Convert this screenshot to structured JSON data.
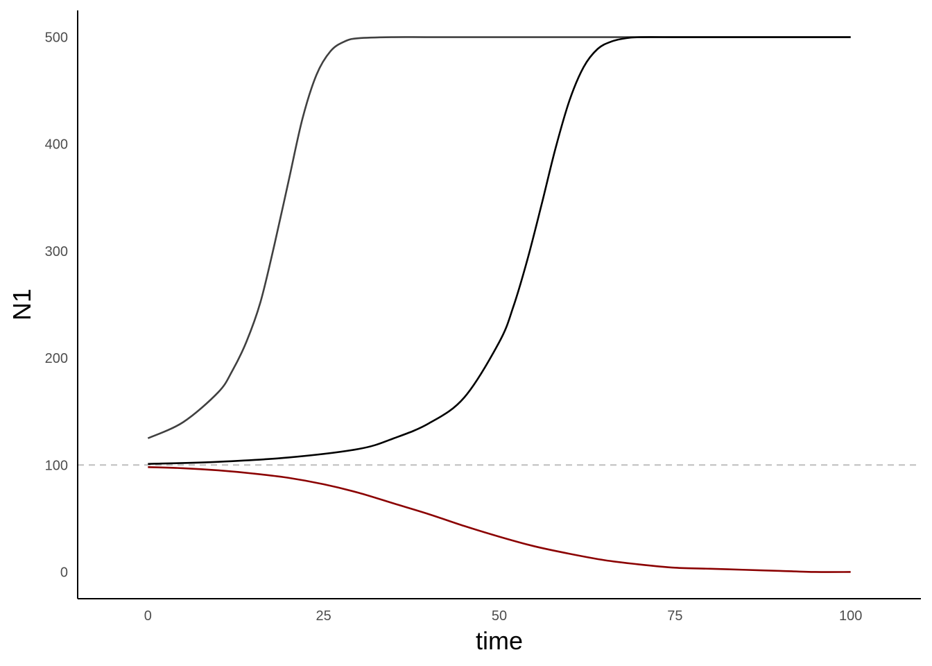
{
  "chart_data": {
    "type": "line",
    "title": "",
    "xlabel": "time",
    "ylabel": "N1",
    "xlim": [
      -10,
      110
    ],
    "ylim": [
      -25,
      525
    ],
    "x_ticks": [
      "0",
      "25",
      "50",
      "75",
      "100"
    ],
    "y_ticks": [
      "0",
      "100",
      "200",
      "300",
      "400",
      "500"
    ],
    "grid": false,
    "legend": "none",
    "reference_line": {
      "y": 100,
      "style": "dashed",
      "color": "#bebebe"
    },
    "series": [
      {
        "color": "#404040",
        "x": [
          0,
          5,
          10,
          12,
          14,
          16,
          18,
          20,
          22,
          24,
          26,
          28,
          30,
          35,
          40,
          50,
          60,
          70,
          80,
          90,
          100
        ],
        "y": [
          125,
          140,
          168,
          188,
          215,
          252,
          306,
          365,
          424,
          465,
          487,
          496,
          499,
          500,
          500,
          500,
          500,
          500,
          500,
          500,
          500
        ]
      },
      {
        "color": "#000000",
        "x": [
          0,
          10,
          20,
          30,
          35,
          40,
          45,
          50,
          52,
          54,
          56,
          58,
          60,
          62,
          64,
          66,
          68,
          70,
          75,
          80,
          90,
          100
        ],
        "y": [
          101,
          103,
          107,
          115,
          125,
          139,
          163,
          215,
          248,
          292,
          343,
          396,
          441,
          472,
          489,
          496,
          499,
          500,
          500,
          500,
          500,
          500
        ]
      },
      {
        "color": "#8b0000",
        "x": [
          0,
          5,
          10,
          15,
          20,
          25,
          30,
          35,
          40,
          45,
          50,
          55,
          60,
          65,
          70,
          75,
          80,
          85,
          90,
          95,
          100
        ],
        "y": [
          98,
          97,
          95,
          92,
          88,
          82,
          74,
          64,
          54,
          43,
          33,
          24,
          17,
          11,
          7,
          4,
          3,
          2,
          1,
          0,
          0
        ]
      }
    ]
  }
}
